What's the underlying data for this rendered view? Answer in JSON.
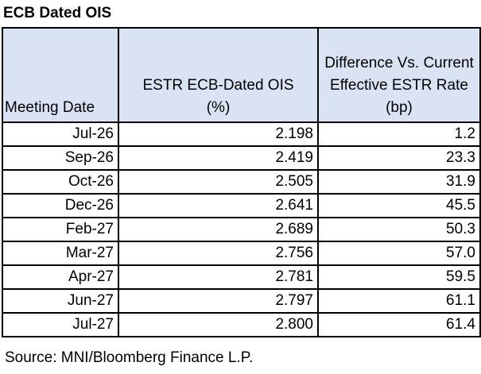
{
  "title": "ECB Dated OIS",
  "chart_data": {
    "type": "table",
    "title": "ECB Dated OIS",
    "columns": [
      "Meeting Date",
      "ESTR ECB-Dated OIS (%)",
      "Difference Vs. Current Effective ESTR Rate (bp)"
    ],
    "header_lines": {
      "col1": [
        "Meeting Date"
      ],
      "col2": [
        "ESTR ECB-Dated OIS",
        "(%)"
      ],
      "col3": [
        "Difference Vs. Current",
        "Effective ESTR Rate",
        "(bp)"
      ]
    },
    "rows": [
      [
        "Jul-26",
        "2.198",
        "1.2"
      ],
      [
        "Sep-26",
        "2.419",
        "23.3"
      ],
      [
        "Oct-26",
        "2.505",
        "31.9"
      ],
      [
        "Dec-26",
        "2.641",
        "45.5"
      ],
      [
        "Feb-27",
        "2.689",
        "50.3"
      ],
      [
        "Mar-27",
        "2.756",
        "57.0"
      ],
      [
        "Apr-27",
        "2.781",
        "59.5"
      ],
      [
        "Jun-27",
        "2.797",
        "61.1"
      ],
      [
        "Jul-27",
        "2.800",
        "61.4"
      ]
    ],
    "header_fill": "#dae3f3"
  },
  "source": "Source: MNI/Bloomberg Finance L.P."
}
